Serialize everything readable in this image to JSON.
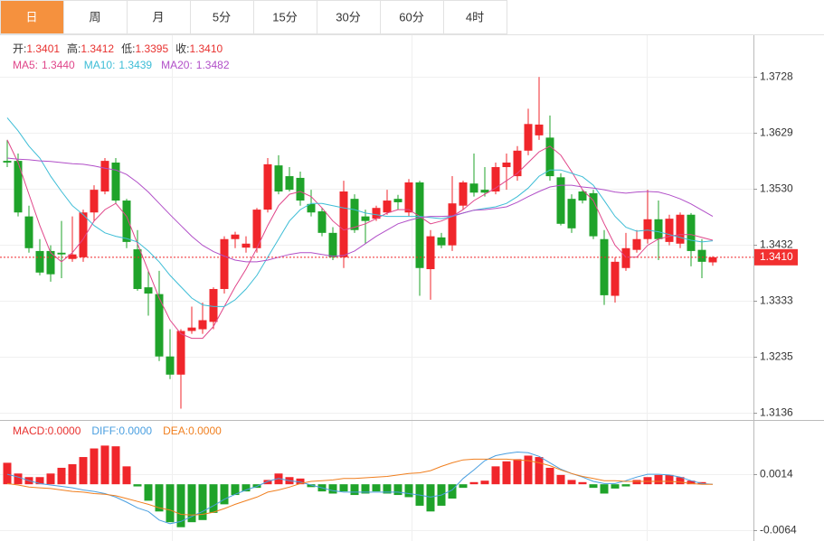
{
  "tabs": [
    "日",
    "周",
    "月",
    "5分",
    "15分",
    "30分",
    "60分",
    "4时"
  ],
  "active_tab": 0,
  "chart_data": [
    {
      "type": "candlestick",
      "up_color": "#f0262b",
      "down_color": "#1fa32a",
      "ylim": [
        1.3123,
        1.38
      ],
      "yticks": [
        1.3728,
        1.3629,
        {
          "value": 1.353,
          "label": "1.3530"
        },
        1.3432,
        1.3333,
        1.3235,
        1.3136
      ],
      "grid": true,
      "ohlc_legend": [
        {
          "name": "开:",
          "value": "1.3401"
        },
        {
          "name": "高:",
          "value": "1.3412"
        },
        {
          "name": "低:",
          "value": "1.3395"
        },
        {
          "name": "收:",
          "value": "1.3410"
        }
      ],
      "last_price_label": "1.3410",
      "open": [
        1.358,
        1.358,
        1.3482,
        1.3421,
        1.3421,
        1.3418,
        1.3407,
        1.341,
        1.3489,
        1.3526,
        1.3577,
        1.351,
        1.3424,
        1.3357,
        1.3345,
        1.3235,
        1.3203,
        1.328,
        1.3283,
        1.3296,
        1.3354,
        1.3442,
        1.3427,
        1.3426,
        1.3494,
        1.3572,
        1.3553,
        1.355,
        1.3504,
        1.3491,
        1.3453,
        1.341,
        1.3513,
        1.3482,
        1.3478,
        1.3489,
        1.3513,
        1.3489,
        1.3542,
        1.3389,
        1.3445,
        1.3431,
        1.3501,
        1.354,
        1.3529,
        1.3526,
        1.3569,
        1.3553,
        1.3598,
        1.3625,
        1.3621,
        1.3551,
        1.3513,
        1.3526,
        1.3523,
        1.3442,
        1.3342,
        1.3391,
        1.3423,
        1.3442,
        1.3477,
        1.3437,
        1.3434,
        1.3485,
        1.3423,
        1.3401
      ],
      "high": [
        1.3617,
        1.3593,
        1.3501,
        1.3442,
        1.3431,
        1.3474,
        1.3482,
        1.3494,
        1.3537,
        1.3585,
        1.3585,
        1.3513,
        1.3458,
        1.3386,
        1.3386,
        1.3283,
        1.3283,
        1.3323,
        1.333,
        1.3357,
        1.3447,
        1.3455,
        1.3447,
        1.3497,
        1.3585,
        1.359,
        1.3569,
        1.3561,
        1.3529,
        1.3497,
        1.3463,
        1.3545,
        1.3521,
        1.3494,
        1.3501,
        1.3529,
        1.352,
        1.3548,
        1.3545,
        1.3458,
        1.3453,
        1.3553,
        1.3545,
        1.3593,
        1.3569,
        1.3577,
        1.3593,
        1.3606,
        1.3672,
        1.3728,
        1.366,
        1.3558,
        1.3521,
        1.3529,
        1.3529,
        1.3458,
        1.341,
        1.3453,
        1.3458,
        1.3529,
        1.351,
        1.3485,
        1.3489,
        1.3488,
        1.3442,
        1.3412
      ],
      "low": [
        1.3569,
        1.3482,
        1.3418,
        1.3378,
        1.3367,
        1.3373,
        1.3402,
        1.3402,
        1.3474,
        1.3521,
        1.3505,
        1.3426,
        1.3351,
        1.3307,
        1.3227,
        1.3195,
        1.3143,
        1.3275,
        1.3275,
        1.3283,
        1.3346,
        1.3426,
        1.3418,
        1.3418,
        1.3489,
        1.3521,
        1.3526,
        1.3501,
        1.3482,
        1.3447,
        1.3405,
        1.3391,
        1.3453,
        1.3434,
        1.3474,
        1.3485,
        1.3494,
        1.3482,
        1.3342,
        1.3335,
        1.3426,
        1.3421,
        1.3494,
        1.3517,
        1.3517,
        1.3521,
        1.3529,
        1.3545,
        1.359,
        1.3617,
        1.3545,
        1.3466,
        1.3453,
        1.3505,
        1.3442,
        1.3326,
        1.333,
        1.3386,
        1.3418,
        1.3434,
        1.3405,
        1.3431,
        1.3426,
        1.3394,
        1.3373,
        1.3395
      ],
      "close": [
        1.3577,
        1.3489,
        1.3426,
        1.3383,
        1.338,
        1.3415,
        1.3415,
        1.3489,
        1.3529,
        1.358,
        1.351,
        1.3437,
        1.3354,
        1.3346,
        1.3235,
        1.3203,
        1.328,
        1.3286,
        1.3299,
        1.3354,
        1.3442,
        1.345,
        1.3434,
        1.3494,
        1.3574,
        1.3526,
        1.3529,
        1.351,
        1.3489,
        1.3453,
        1.341,
        1.3526,
        1.3458,
        1.3474,
        1.3497,
        1.351,
        1.3507,
        1.3542,
        1.3391,
        1.3447,
        1.3431,
        1.3505,
        1.3542,
        1.3524,
        1.3524,
        1.3569,
        1.3577,
        1.3598,
        1.3645,
        1.3644,
        1.3553,
        1.3469,
        1.3461,
        1.351,
        1.3447,
        1.3343,
        1.3402,
        1.3426,
        1.3442,
        1.3477,
        1.3442,
        1.3478,
        1.3485,
        1.3421,
        1.3402,
        1.341
      ],
      "series": [
        {
          "name": "MA5:",
          "legend_label": "1.3440",
          "color": "#e0468a",
          "values": [
            1.3617,
            1.3577,
            1.3521,
            1.3466,
            1.3418,
            1.3402,
            1.3418,
            1.3442,
            1.3474,
            1.3494,
            1.3505,
            1.3482,
            1.3434,
            1.3386,
            1.3338,
            1.3299,
            1.3275,
            1.3267,
            1.3267,
            1.3288,
            1.3323,
            1.3358,
            1.3389,
            1.3426,
            1.3466,
            1.3501,
            1.3521,
            1.3526,
            1.3517,
            1.3497,
            1.3474,
            1.3458,
            1.3463,
            1.3469,
            1.3478,
            1.3488,
            1.3494,
            1.3494,
            1.3482,
            1.3469,
            1.3474,
            1.3482,
            1.3494,
            1.351,
            1.3521,
            1.3532,
            1.3545,
            1.3558,
            1.3577,
            1.3596,
            1.3606,
            1.359,
            1.3561,
            1.3529,
            1.351,
            1.3469,
            1.3431,
            1.341,
            1.341,
            1.3431,
            1.3442,
            1.3447,
            1.345,
            1.345,
            1.3445,
            1.344
          ]
        },
        {
          "name": "MA10:",
          "legend_label": "1.3439",
          "color": "#3dbdd6",
          "values": [
            1.3656,
            1.3633,
            1.3606,
            1.3585,
            1.3553,
            1.3526,
            1.3501,
            1.3485,
            1.3466,
            1.3453,
            1.3447,
            1.3443,
            1.3437,
            1.3421,
            1.3402,
            1.3378,
            1.3358,
            1.3338,
            1.3326,
            1.3323,
            1.3323,
            1.3335,
            1.3354,
            1.3378,
            1.341,
            1.3442,
            1.3474,
            1.3494,
            1.3505,
            1.3505,
            1.3501,
            1.3497,
            1.3494,
            1.3488,
            1.3485,
            1.3482,
            1.3482,
            1.3482,
            1.3482,
            1.348,
            1.3478,
            1.3482,
            1.3488,
            1.3493,
            1.3496,
            1.3499,
            1.3505,
            1.3517,
            1.3532,
            1.3553,
            1.3564,
            1.3564,
            1.3558,
            1.3552,
            1.3537,
            1.351,
            1.3482,
            1.3463,
            1.3456,
            1.3458,
            1.3455,
            1.345,
            1.3445,
            1.344,
            1.3437,
            1.3439
          ]
        },
        {
          "name": "MA20:",
          "legend_label": "1.3482",
          "color": "#b14fc8",
          "values": [
            1.3585,
            1.3583,
            1.3582,
            1.358,
            1.3579,
            1.3577,
            1.3575,
            1.3574,
            1.3571,
            1.3567,
            1.3564,
            1.3556,
            1.3542,
            1.3525,
            1.3505,
            1.3485,
            1.3466,
            1.3447,
            1.3431,
            1.342,
            1.3412,
            1.3405,
            1.3402,
            1.3402,
            1.3405,
            1.341,
            1.3415,
            1.3418,
            1.3418,
            1.3415,
            1.3412,
            1.3413,
            1.3421,
            1.3434,
            1.3447,
            1.3458,
            1.3469,
            1.3475,
            1.348,
            1.3482,
            1.3482,
            1.3483,
            1.3488,
            1.3493,
            1.3494,
            1.3496,
            1.3499,
            1.3507,
            1.3517,
            1.3526,
            1.3534,
            1.3537,
            1.3537,
            1.3534,
            1.3532,
            1.3529,
            1.3525,
            1.3523,
            1.3525,
            1.3526,
            1.3525,
            1.352,
            1.3513,
            1.3504,
            1.3493,
            1.3482
          ]
        }
      ]
    },
    {
      "type": "macd",
      "ylim": [
        -0.0078,
        0.0086
      ],
      "yticks": [
        0.0014,
        -0.0064
      ],
      "grid": true,
      "up_color": "#f0262b",
      "down_color": "#1fa32a",
      "series": [
        {
          "name": "MACD:",
          "legend_label": "0.0000",
          "color": "#e8312f",
          "kind": "bar",
          "values": [
            0.003,
            0.0015,
            0.001,
            0.001,
            0.0015,
            0.0023,
            0.0028,
            0.0038,
            0.005,
            0.0054,
            0.0053,
            0.0025,
            -0.0003,
            -0.0023,
            -0.0038,
            -0.0053,
            -0.006,
            -0.0053,
            -0.005,
            -0.004,
            -0.0028,
            -0.0015,
            -0.001,
            -0.0005,
            0.0006,
            0.0015,
            0.001,
            0.0008,
            -0.0004,
            -0.001,
            -0.0013,
            -0.001,
            -0.0015,
            -0.0013,
            -0.001,
            -0.0013,
            -0.0015,
            -0.0018,
            -0.003,
            -0.0038,
            -0.003,
            -0.002,
            -0.0005,
            0.0003,
            0.0005,
            0.0025,
            0.0032,
            0.0035,
            0.004,
            0.0038,
            0.0023,
            0.0013,
            0.0006,
            0.0003,
            -0.0005,
            -0.0013,
            -0.0006,
            -0.0003,
            0.0006,
            0.001,
            0.0013,
            0.0013,
            0.001,
            0.0005,
            0.0003,
            0
          ]
        },
        {
          "name": "DIFF:",
          "legend_label": "0.0000",
          "color": "#4a9fe0",
          "kind": "line",
          "values": [
            0.0014,
            0.001,
            0.0005,
            0.0001,
            -0.0001,
            -0.0003,
            -0.0005,
            -0.0008,
            -0.001,
            -0.0013,
            -0.0018,
            -0.0025,
            -0.0033,
            -0.0038,
            -0.005,
            -0.0055,
            -0.0052,
            -0.0045,
            -0.0038,
            -0.003,
            -0.0021,
            -0.0014,
            -0.0008,
            -0.0003,
            0.0004,
            0.0008,
            0.0005,
            0.0003,
            -0.0001,
            -0.0005,
            -0.0009,
            -0.0011,
            -0.0011,
            -0.0011,
            -0.0011,
            -0.0011,
            -0.0011,
            -0.0013,
            -0.0015,
            -0.0018,
            -0.0015,
            -0.0008,
            0.0008,
            0.002,
            0.0033,
            0.004,
            0.0043,
            0.0045,
            0.0044,
            0.0039,
            0.003,
            0.0021,
            0.0015,
            0.001,
            0.0004,
            0.0001,
            0.0001,
            0.0005,
            0.001,
            0.0014,
            0.0014,
            0.0013,
            0.001,
            0.0005,
            0.0001,
            0
          ]
        },
        {
          "name": "DEA:",
          "legend_label": "0.0000",
          "color": "#f07f1f",
          "kind": "line",
          "values": [
            0.0001,
            -0.0001,
            -0.0004,
            -0.0005,
            -0.0006,
            -0.0008,
            -0.001,
            -0.0011,
            -0.0013,
            -0.0014,
            -0.0016,
            -0.002,
            -0.0024,
            -0.0028,
            -0.0033,
            -0.0036,
            -0.0042,
            -0.0043,
            -0.0042,
            -0.0039,
            -0.0034,
            -0.0028,
            -0.0023,
            -0.0018,
            -0.0011,
            -0.0008,
            -0.0004,
            0.0001,
            0.0004,
            0.0005,
            0.0006,
            0.0008,
            0.0008,
            0.0009,
            0.001,
            0.0011,
            0.0013,
            0.0015,
            0.0016,
            0.0019,
            0.0025,
            0.003,
            0.0034,
            0.0035,
            0.0035,
            0.0035,
            0.0035,
            0.0034,
            0.0033,
            0.003,
            0.0026,
            0.002,
            0.0015,
            0.0011,
            0.0008,
            0.0005,
            0.0005,
            0.0004,
            0.0004,
            0.0004,
            0.0004,
            0.0004,
            0.0003,
            0.0001,
            0,
            0
          ]
        }
      ]
    }
  ]
}
